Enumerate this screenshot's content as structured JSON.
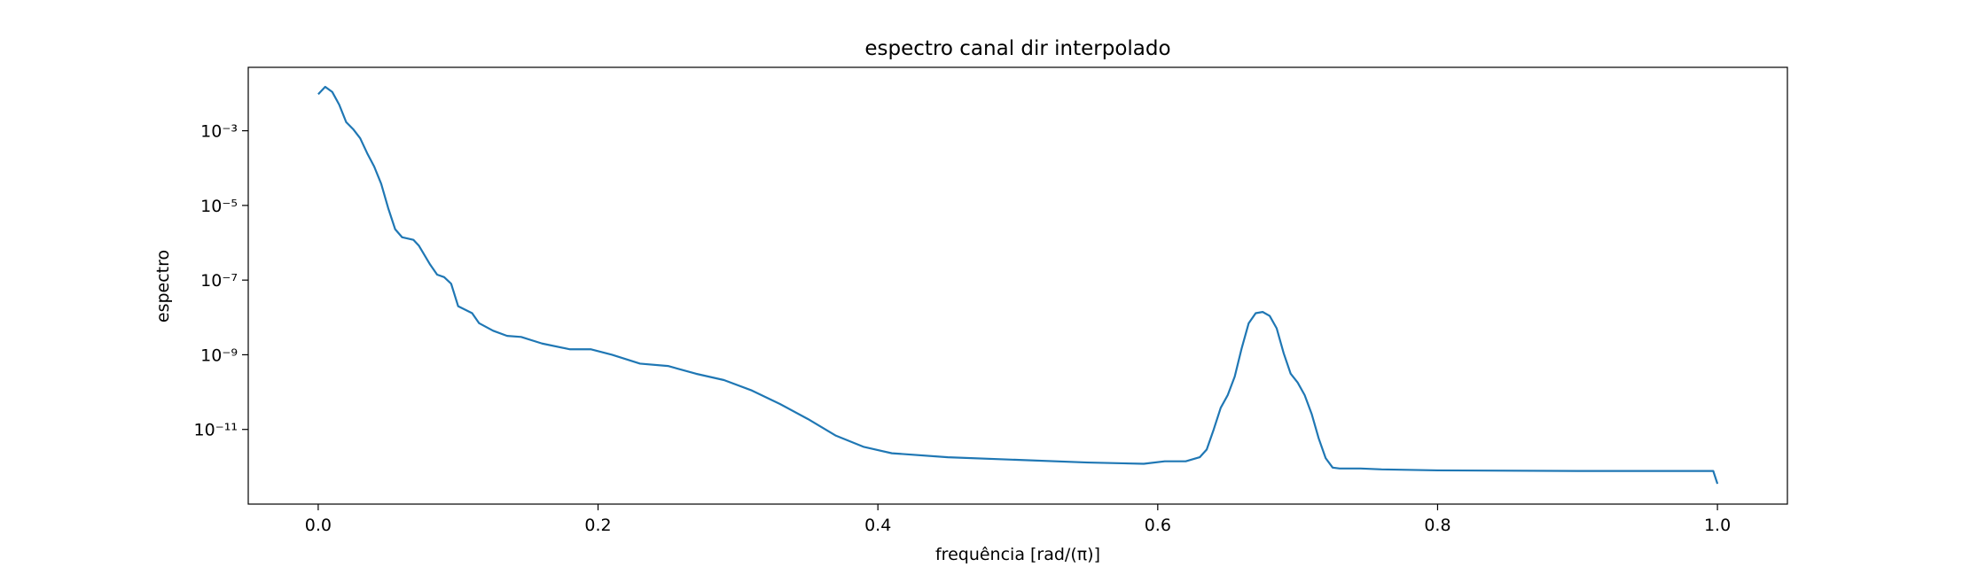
{
  "chart_data": {
    "type": "line",
    "title": "espectro canal dir interpolado",
    "xlabel": "frequência [rad/(π)]",
    "ylabel": "espectro",
    "color": "#1f77b4",
    "yscale": "log",
    "xlim": [
      -0.05,
      1.05
    ],
    "xticks": [
      {
        "value": 0,
        "label": "0.0"
      },
      {
        "value": 0.2,
        "label": "0.2"
      },
      {
        "value": 0.4,
        "label": "0.4"
      },
      {
        "value": 0.6,
        "label": "0.6"
      },
      {
        "value": 0.8,
        "label": "0.8"
      },
      {
        "value": 1,
        "label": "1.0"
      }
    ],
    "ylim": [
      1e-13,
      0.05
    ],
    "yticks": [
      {
        "value": 0.001,
        "label": "10⁻³"
      },
      {
        "value": 1e-05,
        "label": "10⁻⁵"
      },
      {
        "value": 1e-07,
        "label": "10⁻⁷"
      },
      {
        "value": 1e-09,
        "label": "10⁻⁹"
      },
      {
        "value": 1e-11,
        "label": "10⁻¹¹"
      }
    ],
    "x": [
      0,
      0.005,
      0.01,
      0.015,
      0.02,
      0.025,
      0.03,
      0.035,
      0.04,
      0.045,
      0.05,
      0.055,
      0.06,
      0.068,
      0.072,
      0.08,
      0.085,
      0.09,
      0.095,
      0.1,
      0.11,
      0.115,
      0.125,
      0.135,
      0.145,
      0.16,
      0.18,
      0.195,
      0.21,
      0.23,
      0.25,
      0.27,
      0.29,
      0.31,
      0.33,
      0.35,
      0.37,
      0.39,
      0.41,
      0.45,
      0.55,
      0.59,
      0.605,
      0.62,
      0.63,
      0.635,
      0.64,
      0.645,
      0.65,
      0.655,
      0.66,
      0.665,
      0.67,
      0.675,
      0.68,
      0.685,
      0.69,
      0.695,
      0.7,
      0.705,
      0.71,
      0.715,
      0.72,
      0.725,
      0.73,
      0.745,
      0.76,
      0.8,
      0.9,
      0.997,
      1.0
    ],
    "values": [
      0.0095,
      0.015,
      0.011,
      0.005,
      0.0017,
      0.0011,
      0.00063,
      0.00025,
      0.00011,
      3.8e-05,
      8.5e-06,
      2.3e-06,
      1.4e-06,
      1.2e-06,
      8.3e-07,
      2.6e-07,
      1.4e-07,
      1.2e-07,
      8e-08,
      2e-08,
      1.3e-08,
      7e-09,
      4.4e-09,
      3.2e-09,
      3e-09,
      2e-09,
      1.4e-09,
      1.4e-09,
      1e-09,
      5.8e-10,
      5e-10,
      3.1e-10,
      2.1e-10,
      1.1e-10,
      4.8e-11,
      1.9e-11,
      6.8e-12,
      3.4e-12,
      2.3e-12,
      1.8e-12,
      1.3e-12,
      1.2e-12,
      1.4e-12,
      1.4e-12,
      1.8e-12,
      2.9e-12,
      1e-11,
      3.8e-11,
      8.3e-11,
      2.6e-10,
      1.5e-09,
      7e-09,
      1.3e-08,
      1.4e-08,
      1.1e-08,
      5.1e-09,
      1.1e-09,
      3.1e-10,
      1.8e-10,
      8.3e-11,
      2.6e-11,
      5.8e-12,
      1.7e-12,
      9.5e-13,
      9e-13,
      9e-13,
      8.5e-13,
      8e-13,
      7.7e-13,
      7.7e-13,
      3.5e-13
    ]
  }
}
